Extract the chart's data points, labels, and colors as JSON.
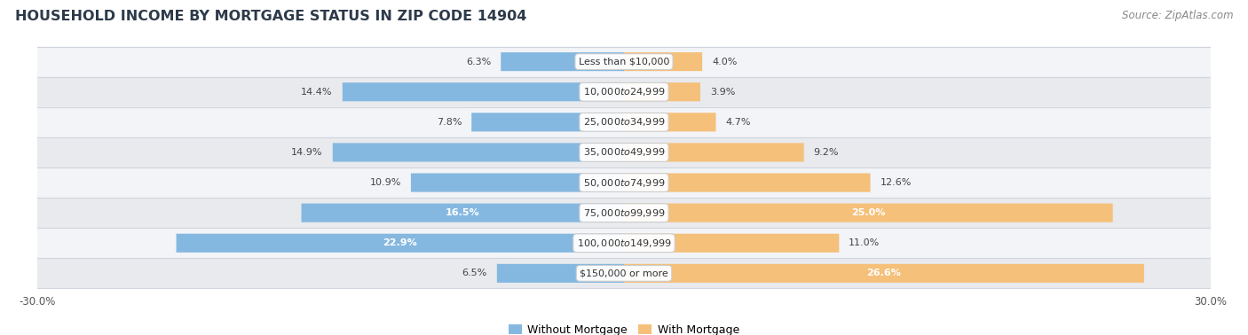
{
  "title": "HOUSEHOLD INCOME BY MORTGAGE STATUS IN ZIP CODE 14904",
  "source": "Source: ZipAtlas.com",
  "categories": [
    "Less than $10,000",
    "$10,000 to $24,999",
    "$25,000 to $34,999",
    "$35,000 to $49,999",
    "$50,000 to $74,999",
    "$75,000 to $99,999",
    "$100,000 to $149,999",
    "$150,000 or more"
  ],
  "without_mortgage": [
    6.3,
    14.4,
    7.8,
    14.9,
    10.9,
    16.5,
    22.9,
    6.5
  ],
  "with_mortgage": [
    4.0,
    3.9,
    4.7,
    9.2,
    12.6,
    25.0,
    11.0,
    26.6
  ],
  "color_without": "#85b8e0",
  "color_with": "#f5c07a",
  "xlim": 30.0,
  "bar_height": 0.62,
  "row_bg_light": "#f2f4f8",
  "row_bg_dark": "#e8eaee",
  "row_separator": "#d0d4dc",
  "legend_without": "Without Mortgage",
  "legend_with": "With Mortgage",
  "label_inside_threshold_wo": 15.0,
  "label_inside_threshold_wi": 20.0
}
